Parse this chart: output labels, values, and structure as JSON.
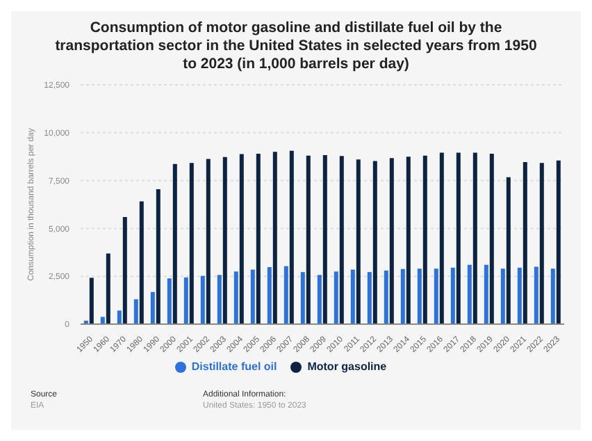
{
  "chart_data": {
    "type": "bar",
    "title": "Consumption of motor gasoline and distillate fuel oil by the transportation sector in the United States in selected years from 1950 to 2023 (in 1,000 barrels per day)",
    "ylabel": "Consumption in thousand barrels per day",
    "categories": [
      "1950",
      "1960",
      "1970",
      "1980",
      "1990",
      "2000",
      "2001",
      "2002",
      "2003",
      "2004",
      "2005",
      "2006",
      "2007",
      "2008",
      "2009",
      "2010",
      "2011",
      "2012",
      "2013",
      "2014",
      "2015",
      "2016",
      "2017",
      "2018",
      "2019",
      "2020",
      "2021",
      "2022",
      "2023"
    ],
    "series": [
      {
        "name": "Distillate fuel oil",
        "color": "#2d72d9",
        "values": [
          180,
          380,
          710,
          1300,
          1680,
          2390,
          2440,
          2520,
          2570,
          2750,
          2850,
          2980,
          3030,
          2720,
          2570,
          2750,
          2850,
          2720,
          2800,
          2880,
          2900,
          2900,
          2950,
          3100,
          3100,
          2900,
          2950,
          3000,
          2900
        ]
      },
      {
        "name": "Motor gasoline",
        "color": "#0e2340",
        "values": [
          2420,
          3690,
          5600,
          6410,
          7050,
          8370,
          8420,
          8630,
          8730,
          8880,
          8900,
          9000,
          9060,
          8800,
          8830,
          8780,
          8600,
          8520,
          8680,
          8750,
          8800,
          8960,
          8960,
          8960,
          8900,
          7680,
          8470,
          8420,
          8550
        ]
      }
    ],
    "ylim": [
      0,
      12500
    ],
    "yticks": [
      0,
      {
        "value": 2500,
        "label": "2,500"
      },
      {
        "value": 5000,
        "label": "5,000"
      },
      {
        "value": 7500,
        "label": "7,500"
      },
      {
        "value": 10000,
        "label": "10,000"
      },
      {
        "value": 12500,
        "label": "12,500"
      }
    ],
    "grid": "y",
    "legend": "bottom",
    "annotations": [
      "Source",
      "EIA",
      "Additional Information:",
      "United States: 1950 to 2023"
    ]
  }
}
